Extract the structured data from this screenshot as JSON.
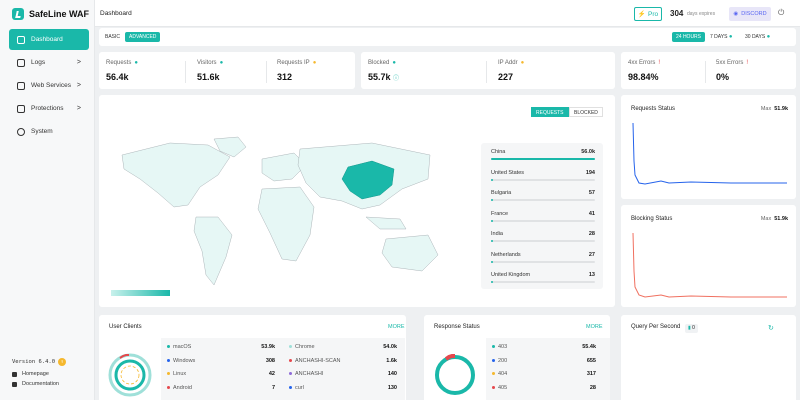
{
  "app": {
    "name": "SafeLine WAF",
    "accent": "#1ab8a9"
  },
  "sidebar": {
    "items": [
      {
        "label": "Dashboard",
        "icon": "chart-icon",
        "active": true
      },
      {
        "label": "Logs",
        "icon": "logs-icon",
        "caret": ">"
      },
      {
        "label": "Web Services",
        "icon": "shield-icon",
        "caret": ">"
      },
      {
        "label": "Protections",
        "icon": "protection-icon",
        "caret": ">"
      },
      {
        "label": "System",
        "icon": "gear-icon"
      }
    ],
    "version": "Version 6.4.0",
    "links": [
      {
        "label": "Homepage",
        "icon": "home-icon"
      },
      {
        "label": "Documentation",
        "icon": "doc-icon"
      }
    ]
  },
  "topbar": {
    "breadcrumb": "Dashboard",
    "pro_label": "Pro",
    "expire_days": "304",
    "expire_text": "days expires",
    "discord_label": "DISCORD",
    "logout_icon": "logout-icon"
  },
  "filters": {
    "modes": [
      "BASIC",
      "ADVANCED"
    ],
    "active_mode": "ADVANCED",
    "ranges": [
      "24 HOURS",
      "7 DAYS",
      "30 DAYS"
    ],
    "active_range": "24 HOURS"
  },
  "stats": {
    "requests": {
      "label": "Requests",
      "value": "56.4k"
    },
    "visitors": {
      "label": "Visitors",
      "value": "51.6k"
    },
    "requests_ip": {
      "label": "Requests IP",
      "value": "312"
    },
    "blocked": {
      "label": "Blocked",
      "value": "55.7k"
    },
    "ip_addr": {
      "label": "IP Addr",
      "value": "227"
    },
    "errors_4xx": {
      "label": "4xx Errors",
      "value": "98.84%"
    },
    "errors_5xx": {
      "label": "5xx Errors",
      "value": "0%"
    }
  },
  "map": {
    "toggles": [
      "REQUESTS",
      "BLOCKED"
    ],
    "active_toggle": "REQUESTS",
    "countries": [
      {
        "name": "China",
        "value": "56.0k",
        "share": 1.0
      },
      {
        "name": "United States",
        "value": "194",
        "share": 0.02
      },
      {
        "name": "Bulgaria",
        "value": "57",
        "share": 0.01
      },
      {
        "name": "France",
        "value": "41",
        "share": 0.01
      },
      {
        "name": "India",
        "value": "28",
        "share": 0.005
      },
      {
        "name": "Netherlands",
        "value": "27",
        "share": 0.005
      },
      {
        "name": "United Kingdom",
        "value": "13",
        "share": 0.003
      }
    ]
  },
  "requests_status": {
    "title": "Requests Status",
    "max_label": "Max",
    "max_value": "51.9k",
    "color": "#2563eb"
  },
  "blocking_status": {
    "title": "Blocking Status",
    "max_label": "Max",
    "max_value": "51.9k",
    "color": "#f07060"
  },
  "user_clients": {
    "title": "User Clients",
    "more": "MORE",
    "items": [
      {
        "name": "macOS",
        "value": "53.9k",
        "color": "#1ab8a9"
      },
      {
        "name": "Chrome",
        "value": "54.0k",
        "color": "#9fe0d9"
      },
      {
        "name": "Windows",
        "value": "308",
        "color": "#2563eb"
      },
      {
        "name": "ANCHASHI-SCAN",
        "value": "1.6k",
        "color": "#e5484d"
      },
      {
        "name": "Linux",
        "value": "42",
        "color": "#f5b82e"
      },
      {
        "name": "ANCHASHI",
        "value": "140",
        "color": "#8e6bd8"
      },
      {
        "name": "Android",
        "value": "7",
        "color": "#e5484d"
      },
      {
        "name": "curl",
        "value": "130",
        "color": "#2563eb"
      }
    ]
  },
  "response_status": {
    "title": "Response Status",
    "more": "MORE",
    "items": [
      {
        "name": "403",
        "value": "55.4k",
        "color": "#1ab8a9"
      },
      {
        "name": "200",
        "value": "655",
        "color": "#2563eb"
      },
      {
        "name": "404",
        "value": "317",
        "color": "#f5b82e"
      },
      {
        "name": "405",
        "value": "28",
        "color": "#e5484d"
      }
    ]
  },
  "qps": {
    "title": "Query Per Second",
    "value": "0"
  }
}
